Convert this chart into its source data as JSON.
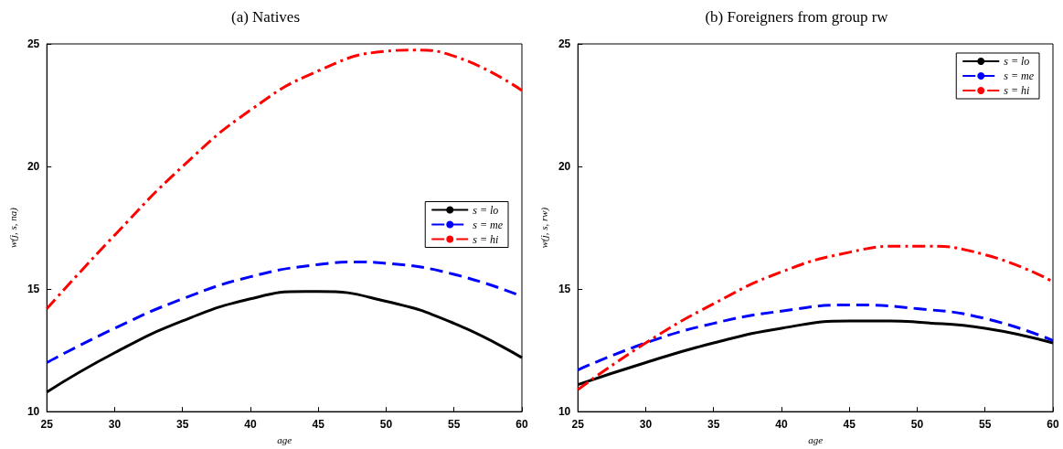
{
  "chart_data": [
    {
      "type": "line",
      "title": "(a) Natives",
      "xlabel": "age",
      "ylabel": "w(j, s, na)",
      "xlim": [
        25,
        60
      ],
      "xticks": [
        25,
        30,
        35,
        40,
        45,
        50,
        55,
        60
      ],
      "ylim": [
        10,
        25
      ],
      "yticks": [
        10,
        15,
        20,
        25
      ],
      "grid": false,
      "legend": "right",
      "marker": "none",
      "series": [
        {
          "name": "s = lo",
          "color": "#000000",
          "line_style": "solid",
          "x": [
            25,
            30,
            35,
            40,
            44,
            45,
            50,
            55,
            60
          ],
          "values": [
            10.8,
            12.4,
            13.7,
            14.6,
            14.9,
            14.9,
            14.5,
            13.6,
            12.2
          ]
        },
        {
          "name": "s = me",
          "color": "#0000ff",
          "line_style": "dashed",
          "x": [
            25,
            30,
            35,
            40,
            45,
            48,
            50,
            55,
            60
          ],
          "values": [
            12.0,
            13.4,
            14.6,
            15.5,
            16.0,
            16.1,
            16.05,
            15.6,
            14.7
          ]
        },
        {
          "name": "s = hi",
          "color": "#ff0000",
          "line_style": "dashdot",
          "x": [
            25,
            30,
            35,
            40,
            45,
            50,
            52,
            55,
            60
          ],
          "values": [
            14.2,
            17.2,
            20.0,
            22.3,
            23.9,
            24.7,
            24.75,
            24.5,
            23.1
          ]
        }
      ]
    },
    {
      "type": "line",
      "title": "(b) Foreigners from group rw",
      "xlabel": "age",
      "ylabel": "w(j, s, rw)",
      "xlim": [
        25,
        60
      ],
      "xticks": [
        25,
        30,
        35,
        40,
        45,
        50,
        55,
        60
      ],
      "ylim": [
        10,
        25
      ],
      "yticks": [
        10,
        15,
        20,
        25
      ],
      "grid": false,
      "legend": "top right",
      "marker": "none",
      "series": [
        {
          "name": "s = lo",
          "color": "#000000",
          "line_style": "solid",
          "x": [
            25,
            30,
            35,
            40,
            45,
            48,
            50,
            55,
            60
          ],
          "values": [
            11.1,
            12.0,
            12.8,
            13.4,
            13.7,
            13.7,
            13.65,
            13.4,
            12.8
          ]
        },
        {
          "name": "s = me",
          "color": "#0000ff",
          "line_style": "dashed",
          "x": [
            25,
            30,
            35,
            40,
            45,
            50,
            55,
            60
          ],
          "values": [
            11.7,
            12.8,
            13.6,
            14.1,
            14.35,
            14.2,
            13.8,
            12.9
          ]
        },
        {
          "name": "s = hi",
          "color": "#ff0000",
          "line_style": "dashdot",
          "x": [
            25,
            30,
            35,
            40,
            45,
            49,
            50,
            55,
            60
          ],
          "values": [
            10.9,
            12.8,
            14.4,
            15.7,
            16.5,
            16.75,
            16.75,
            16.4,
            15.3
          ]
        }
      ]
    }
  ]
}
